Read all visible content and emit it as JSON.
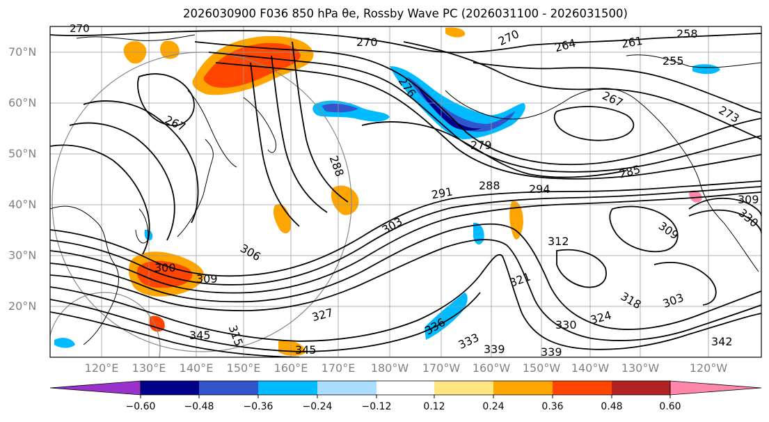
{
  "title": "2026030900 F036 850 hPa θe, Rossby Wave PC (2026031100 - 2026031500)",
  "lat_labels": [
    "70°N",
    "60°N",
    "50°N",
    "40°N",
    "30°N",
    "20°N"
  ],
  "lon_labels": [
    "120°E",
    "130°E",
    "140°E",
    "150°E",
    "160°E",
    "170°E",
    "180°W",
    "170°W",
    "160°W",
    "150°W",
    "140°W",
    "130°W",
    "120°W"
  ],
  "contour_labels": [
    "270",
    "270",
    "270",
    "264",
    "261",
    "258",
    "255",
    "276",
    "267",
    "267",
    "273",
    "279",
    "285",
    "288",
    "291",
    "288",
    "294",
    "303",
    "306",
    "309",
    "309",
    "312",
    "318",
    "321",
    "324",
    "327",
    "330",
    "333",
    "336",
    "339",
    "339",
    "342",
    "345",
    "345",
    "300",
    "309",
    "315",
    "303",
    "330"
  ],
  "colorbar": {
    "ticks": [
      "−0.60",
      "−0.48",
      "−0.36",
      "−0.24",
      "−0.12",
      "0.12",
      "0.24",
      "0.36",
      "0.48",
      "0.60"
    ],
    "colors": [
      "#9933cc",
      "#000088",
      "#3355cc",
      "#00bbff",
      "#aaddff",
      "#ffffff",
      "#ffe680",
      "#ffa500",
      "#ff4500",
      "#b22222",
      "#ff88aa"
    ]
  },
  "colors": {
    "contour": "#000000",
    "gridline": "#999999",
    "coastline": "#000000",
    "positive_anomaly": "#ff4500",
    "negative_anomaly": "#00bbff"
  }
}
